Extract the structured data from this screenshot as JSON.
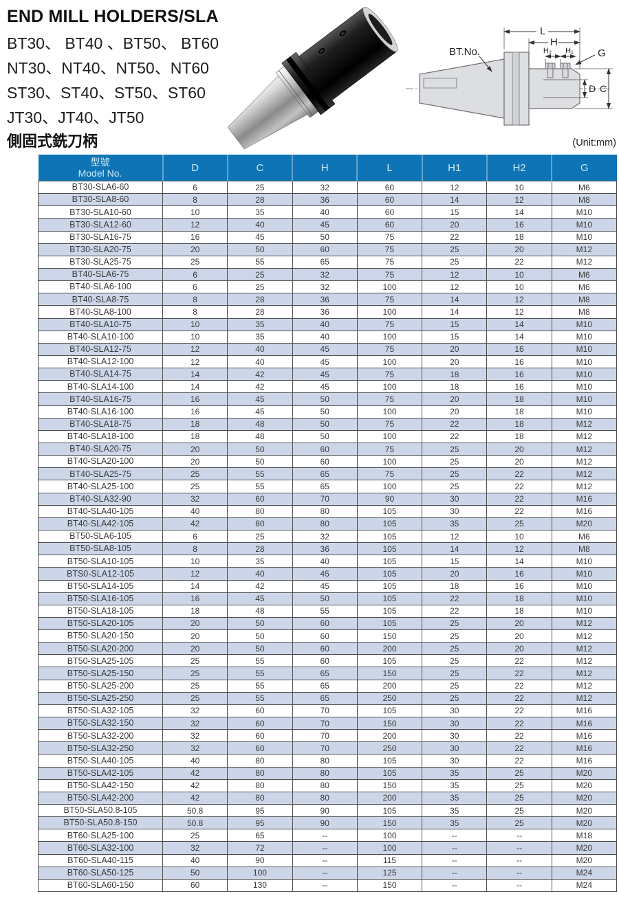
{
  "page": {
    "title": "END MILL HOLDERS/SLA",
    "series_lines": [
      "BT30、 BT40 、BT50、 BT60",
      "NT30、NT40、NT50、NT60",
      "ST30、ST40、ST50、ST60",
      "JT30、JT40、JT50"
    ],
    "subtitle_zh": "側固式銑刀柄",
    "unit_note": "(Unit:mm)"
  },
  "diagram": {
    "labels": {
      "bt_no": "BT.No.",
      "L": "L",
      "H": "H",
      "H2": "H₂",
      "H1": "H₁",
      "G": "G",
      "D": "D",
      "C": "C"
    }
  },
  "colors": {
    "header_bg": "#0e74b5",
    "header_divider": "#66a3cb",
    "header_text": "#cfe9f8",
    "stripe": "#ccd6e8",
    "row_text": "#3a3a3a",
    "grid": "#4f4f4f"
  },
  "table": {
    "header": {
      "model_zh": "型號",
      "model_en": "Model No.",
      "columns": [
        "D",
        "C",
        "H",
        "L",
        "H1",
        "H2",
        "G"
      ]
    },
    "rows": [
      [
        "BT30-SLA6-60",
        "6",
        "25",
        "32",
        "60",
        "12",
        "10",
        "M6"
      ],
      [
        "BT30-SLA8-60",
        "8",
        "28",
        "36",
        "60",
        "14",
        "12",
        "M8"
      ],
      [
        "BT30-SLA10-60",
        "10",
        "35",
        "40",
        "60",
        "15",
        "14",
        "M10"
      ],
      [
        "BT30-SLA12-60",
        "12",
        "40",
        "45",
        "60",
        "20",
        "16",
        "M10"
      ],
      [
        "BT30-SLA16-75",
        "16",
        "45",
        "50",
        "75",
        "22",
        "18",
        "M10"
      ],
      [
        "BT30-SLA20-75",
        "20",
        "50",
        "60",
        "75",
        "25",
        "20",
        "M12"
      ],
      [
        "BT30-SLA25-75",
        "25",
        "55",
        "65",
        "75",
        "25",
        "22",
        "M12"
      ],
      [
        "BT40-SLA6-75",
        "6",
        "25",
        "32",
        "75",
        "12",
        "10",
        "M6"
      ],
      [
        "BT40-SLA6-100",
        "6",
        "25",
        "32",
        "100",
        "12",
        "10",
        "M6"
      ],
      [
        "BT40-SLA8-75",
        "8",
        "28",
        "36",
        "75",
        "14",
        "12",
        "M8"
      ],
      [
        "BT40-SLA8-100",
        "8",
        "28",
        "36",
        "100",
        "14",
        "12",
        "M8"
      ],
      [
        "BT40-SLA10-75",
        "10",
        "35",
        "40",
        "75",
        "15",
        "14",
        "M10"
      ],
      [
        "BT40-SLA10-100",
        "10",
        "35",
        "40",
        "100",
        "15",
        "14",
        "M10"
      ],
      [
        "BT40-SLA12-75",
        "12",
        "40",
        "45",
        "75",
        "20",
        "16",
        "M10"
      ],
      [
        "BT40-SLA12-100",
        "12",
        "40",
        "45",
        "100",
        "20",
        "16",
        "M10"
      ],
      [
        "BT40-SLA14-75",
        "14",
        "42",
        "45",
        "75",
        "18",
        "16",
        "M10"
      ],
      [
        "BT40-SLA14-100",
        "14",
        "42",
        "45",
        "100",
        "18",
        "16",
        "M10"
      ],
      [
        "BT40-SLA16-75",
        "16",
        "45",
        "50",
        "75",
        "20",
        "18",
        "M10"
      ],
      [
        "BT40-SLA16-100",
        "16",
        "45",
        "50",
        "100",
        "20",
        "18",
        "M10"
      ],
      [
        "BT40-SLA18-75",
        "18",
        "48",
        "50",
        "75",
        "22",
        "18",
        "M12"
      ],
      [
        "BT40-SLA18-100",
        "18",
        "48",
        "50",
        "100",
        "22",
        "18",
        "M12"
      ],
      [
        "BT40-SLA20-75",
        "20",
        "50",
        "60",
        "75",
        "25",
        "20",
        "M12"
      ],
      [
        "BT40-SLA20-100",
        "20",
        "50",
        "60",
        "100",
        "25",
        "20",
        "M12"
      ],
      [
        "BT40-SLA25-75",
        "25",
        "55",
        "65",
        "75",
        "25",
        "22",
        "M12"
      ],
      [
        "BT40-SLA25-100",
        "25",
        "55",
        "65",
        "100",
        "25",
        "22",
        "M12"
      ],
      [
        "BT40-SLA32-90",
        "32",
        "60",
        "70",
        "90",
        "30",
        "22",
        "M16"
      ],
      [
        "BT40-SLA40-105",
        "40",
        "80",
        "80",
        "105",
        "30",
        "22",
        "M16"
      ],
      [
        "BT40-SLA42-105",
        "42",
        "80",
        "80",
        "105",
        "35",
        "25",
        "M20"
      ],
      [
        "BT50-SLA6-105",
        "6",
        "25",
        "32",
        "105",
        "12",
        "10",
        "M6"
      ],
      [
        "BT50-SLA8-105",
        "8",
        "28",
        "36",
        "105",
        "14",
        "12",
        "M8"
      ],
      [
        "BT50-SLA10-105",
        "10",
        "35",
        "40",
        "105",
        "15",
        "14",
        "M10"
      ],
      [
        "BTS0-SLA12-105",
        "12",
        "40",
        "45",
        "105",
        "20",
        "16",
        "M10"
      ],
      [
        "BT50-SLA14-105",
        "14",
        "42",
        "45",
        "105",
        "18",
        "16",
        "M10"
      ],
      [
        "BT50-SLA16-105",
        "16",
        "45",
        "50",
        "105",
        "22",
        "18",
        "M10"
      ],
      [
        "BT50-SLA18-105",
        "18",
        "48",
        "55",
        "105",
        "22",
        "18",
        "M10"
      ],
      [
        "BT50-SLA20-105",
        "20",
        "50",
        "60",
        "105",
        "25",
        "20",
        "M12"
      ],
      [
        "BT50-SLA20-150",
        "20",
        "50",
        "60",
        "150",
        "25",
        "20",
        "M12"
      ],
      [
        "BT50-SLA20-200",
        "20",
        "50",
        "60",
        "200",
        "25",
        "20",
        "M12"
      ],
      [
        "BT50-SLA25-105",
        "25",
        "55",
        "60",
        "105",
        "25",
        "22",
        "M12"
      ],
      [
        "BT50-SLA25-150",
        "25",
        "55",
        "65",
        "150",
        "25",
        "22",
        "M12"
      ],
      [
        "BT50-SLA25-200",
        "25",
        "55",
        "65",
        "200",
        "25",
        "22",
        "M12"
      ],
      [
        "BT50-SLA25-250",
        "25",
        "55",
        "65",
        "250",
        "25",
        "22",
        "M12"
      ],
      [
        "BT50-SLA32-105",
        "32",
        "60",
        "70",
        "105",
        "30",
        "22",
        "M16"
      ],
      [
        "BT50-SLA32-150",
        "32",
        "60",
        "70",
        "150",
        "30",
        "22",
        "M16"
      ],
      [
        "BT50-SLA32-200",
        "32",
        "60",
        "70",
        "200",
        "30",
        "22",
        "M16"
      ],
      [
        "BT50-SLA32-250",
        "32",
        "60",
        "70",
        "250",
        "30",
        "22",
        "M16"
      ],
      [
        "BT50-SLA40-105",
        "40",
        "80",
        "80",
        "105",
        "30",
        "22",
        "M16"
      ],
      [
        "BT50-SLA42-105",
        "42",
        "80",
        "80",
        "105",
        "35",
        "25",
        "M20"
      ],
      [
        "BT50-SLA42-150",
        "42",
        "80",
        "80",
        "150",
        "35",
        "25",
        "M20"
      ],
      [
        "BT50-SLA42-200",
        "42",
        "80",
        "80",
        "200",
        "35",
        "25",
        "M20"
      ],
      [
        "BT50-SLA50.8-105",
        "50.8",
        "95",
        "90",
        "105",
        "35",
        "25",
        "M20"
      ],
      [
        "BT50-SLA50.8-150",
        "50.8",
        "95",
        "90",
        "150",
        "35",
        "25",
        "M20"
      ],
      [
        "BT60-SLA25-100",
        "25",
        "65",
        "--",
        "100",
        "--",
        "--",
        "M18"
      ],
      [
        "BT60-SLA32-100",
        "32",
        "72",
        "--",
        "100",
        "--",
        "--",
        "M20"
      ],
      [
        "BT60-SLA40-115",
        "40",
        "90",
        "--",
        "115",
        "--",
        "--",
        "M20"
      ],
      [
        "BT60-SLA50-125",
        "50",
        "100",
        "--",
        "125",
        "--",
        "--",
        "M24"
      ],
      [
        "BT60-SLA60-150",
        "60",
        "130",
        "--",
        "150",
        "--",
        "--",
        "M24"
      ]
    ]
  }
}
